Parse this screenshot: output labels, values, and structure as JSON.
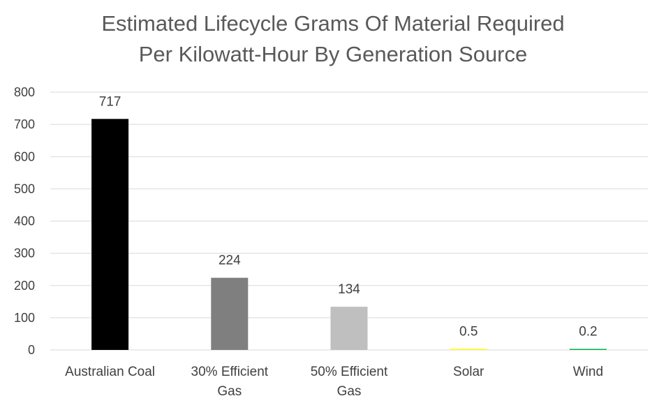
{
  "chart_data": {
    "type": "bar",
    "title_lines": [
      "Estimated Lifecycle Grams Of Material Required",
      "Per Kilowatt-Hour By Generation Source"
    ],
    "categories": [
      [
        "Australian Coal"
      ],
      [
        "30% Efficient",
        "Gas"
      ],
      [
        "50% Efficient",
        "Gas"
      ],
      [
        "Solar"
      ],
      [
        "Wind"
      ]
    ],
    "values": [
      717,
      224,
      134,
      0.5,
      0.2
    ],
    "data_labels": [
      "717",
      "224",
      "134",
      "0.5",
      "0.2"
    ],
    "colors": [
      "#000000",
      "#7f7f7f",
      "#bfbfbf",
      "#ffff00",
      "#00b050"
    ],
    "ylim": [
      0,
      800
    ],
    "yticks": [
      0,
      100,
      200,
      300,
      400,
      500,
      600,
      700,
      800
    ],
    "grid": true,
    "legend": "none"
  }
}
